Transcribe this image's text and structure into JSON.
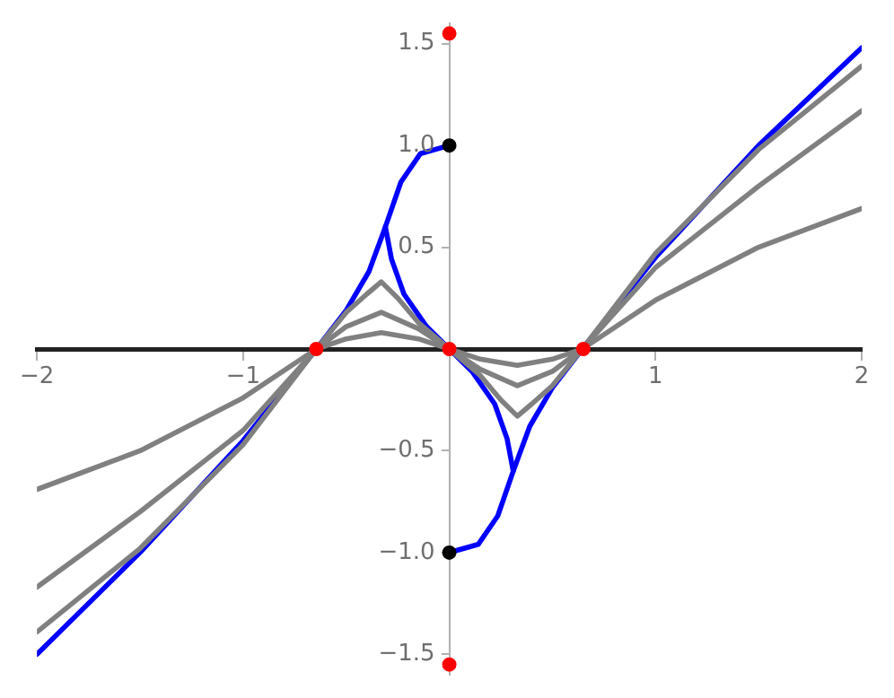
{
  "chart_data": {
    "type": "line",
    "marker": "none",
    "grid": false,
    "legend": false,
    "xlim": [
      -2,
      2
    ],
    "xticks": [
      {
        "value": -2,
        "label": "−2"
      },
      {
        "value": -1,
        "label": "−1"
      },
      1,
      2
    ],
    "ylim": [
      -1.6,
      1.6
    ],
    "yticks": [
      {
        "value": -1.5,
        "label": "−1.5"
      },
      {
        "value": -1,
        "label": "−1.0"
      },
      {
        "value": -0.5,
        "label": "−0.5"
      },
      0.5,
      {
        "value": 1,
        "label": "1.0"
      },
      1.5
    ],
    "series": [
      {
        "color": "#808080",
        "x": [
          -2,
          -1.5,
          -1,
          -0.645,
          -0.5,
          -0.33,
          -0.15,
          0,
          0.15,
          0.33,
          0.5,
          0.645,
          1,
          1.5,
          2
        ],
        "values": [
          -0.69,
          -0.5,
          -0.24,
          0,
          0.05,
          0.08,
          0.05,
          0,
          -0.05,
          -0.08,
          -0.05,
          0,
          0.24,
          0.5,
          0.69
        ]
      },
      {
        "color": "#808080",
        "x": [
          -2,
          -1.5,
          -1,
          -0.645,
          -0.5,
          -0.33,
          -0.15,
          0,
          0.15,
          0.33,
          0.5,
          0.645,
          1,
          1.5,
          2
        ],
        "values": [
          -1.17,
          -0.8,
          -0.4,
          0,
          0.11,
          0.18,
          0.1,
          0,
          -0.1,
          -0.18,
          -0.11,
          0,
          0.4,
          0.8,
          1.17
        ]
      },
      {
        "color": "#808080",
        "x": [
          -2,
          -1.5,
          -1,
          -0.645,
          -0.5,
          -0.4,
          -0.33,
          -0.25,
          -0.15,
          0,
          0.15,
          0.25,
          0.33,
          0.4,
          0.5,
          0.645,
          1,
          1.5,
          2
        ],
        "values": [
          -1.39,
          -0.98,
          -0.47,
          0,
          0.18,
          0.27,
          0.33,
          0.25,
          0.13,
          0,
          -0.13,
          -0.25,
          -0.33,
          -0.27,
          -0.18,
          0,
          0.47,
          0.98,
          1.39
        ]
      },
      {
        "color": "#0000ff",
        "x": [
          -2,
          -1.5,
          -1,
          -0.645,
          -0.5,
          -0.39,
          -0.31,
          -0.235,
          -0.14,
          0
        ],
        "values": [
          -1.5,
          -1.0,
          -0.45,
          0,
          0.19,
          0.38,
          0.6,
          0.82,
          0.96,
          1
        ]
      },
      {
        "color": "#0000ff",
        "x": [
          -0.31,
          -0.28,
          -0.22,
          -0.11,
          0,
          0.11,
          0.22,
          0.28,
          0.31
        ],
        "values": [
          0.6,
          0.44,
          0.27,
          0.11,
          0,
          -0.11,
          -0.27,
          -0.44,
          -0.6
        ]
      },
      {
        "color": "#0000ff",
        "x": [
          0,
          0.14,
          0.235,
          0.31,
          0.39,
          0.5,
          0.645,
          1,
          1.5,
          2
        ],
        "values": [
          -1,
          -0.96,
          -0.82,
          -0.6,
          -0.38,
          -0.19,
          0,
          0.45,
          1.0,
          1.48
        ]
      },
      {
        "type": "scatter",
        "color": "#ff0000",
        "marker": "circle",
        "x": [
          -0.645,
          0,
          0.65,
          0,
          0
        ],
        "values": [
          0,
          0,
          0,
          1.55,
          -1.55
        ]
      },
      {
        "type": "scatter",
        "color": "#000000",
        "marker": "circle",
        "x": [
          0,
          0
        ],
        "values": [
          1,
          -1
        ]
      }
    ]
  }
}
